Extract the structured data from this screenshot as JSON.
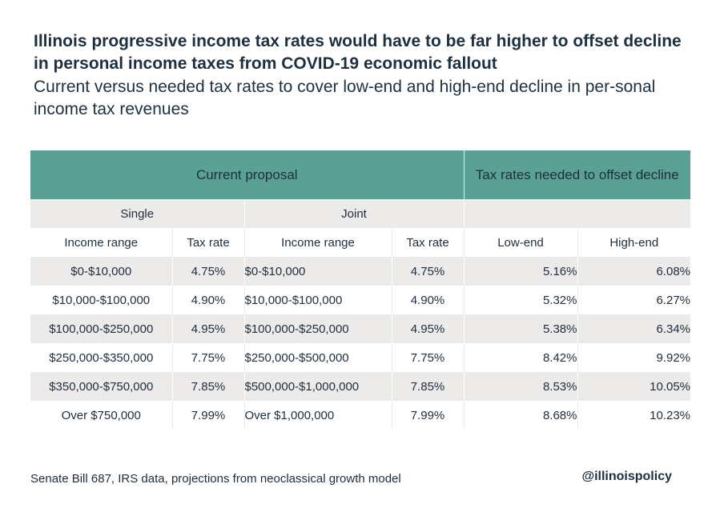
{
  "chart_data": {
    "type": "table",
    "title": "Illinois progressive income tax rates would have to be far higher to offset decline in personal income taxes from COVID-19 economic fallout",
    "subtitle": "Current versus needed tax rates to cover low-end and high-end decline in per-sonal income tax revenues",
    "group_headers": [
      "Current proposal",
      "Tax rates needed to offset decline"
    ],
    "subgroup_headers": [
      "Single",
      "Joint",
      ""
    ],
    "columns": [
      "Income range",
      "Tax rate",
      "Income range",
      "Tax rate",
      "Low-end",
      "High-end"
    ],
    "rows": [
      [
        "$0-$10,000",
        "4.75%",
        "$0-$10,000",
        "4.75%",
        "5.16%",
        "6.08%"
      ],
      [
        "$10,000-$100,000",
        "4.90%",
        "$10,000-$100,000",
        "4.90%",
        "5.32%",
        "6.27%"
      ],
      [
        "$100,000-$250,000",
        "4.95%",
        "$100,000-$250,000",
        "4.95%",
        "5.38%",
        "6.34%"
      ],
      [
        "$250,000-$350,000",
        "7.75%",
        "$250,000-$500,000",
        "7.75%",
        "8.42%",
        "9.92%"
      ],
      [
        "$350,000-$750,000",
        "7.85%",
        "$500,000-$1,000,000",
        "7.85%",
        "8.53%",
        "10.05%"
      ],
      [
        "Over $750,000",
        "7.99%",
        "Over $1,000,000",
        "7.99%",
        "8.68%",
        "10.23%"
      ]
    ],
    "header_color": "#5aa094",
    "band_color": "#ecebea"
  },
  "footer": {
    "source": "Senate Bill 687, IRS data, projections from neoclassical growth model",
    "brand": "@illinoispolicy"
  }
}
